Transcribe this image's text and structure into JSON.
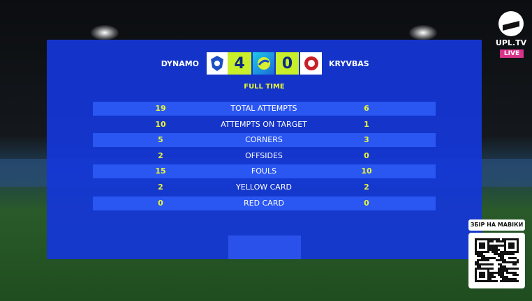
{
  "header": {
    "home_team": "DYNAMO",
    "away_team": "KRYVBAS",
    "home_score": 4,
    "away_score": 0,
    "status": "FULL TIME"
  },
  "table": {
    "rows": [
      [
        19,
        "TOTAL ATTEMPTS",
        6
      ],
      [
        10,
        "ATTEMPTS ON TARGET",
        1
      ],
      [
        5,
        "CORNERS",
        3
      ],
      [
        2,
        "OFFSIDES",
        0
      ],
      [
        15,
        "FOULS",
        10
      ],
      [
        2,
        "YELLOW CARD",
        2
      ],
      [
        0,
        "RED CARD",
        0
      ]
    ]
  },
  "broadcaster": {
    "name": "UPL.TV",
    "badge": "LIVE"
  },
  "qr": {
    "label": "ЗБІР НА МАВІКИ"
  }
}
